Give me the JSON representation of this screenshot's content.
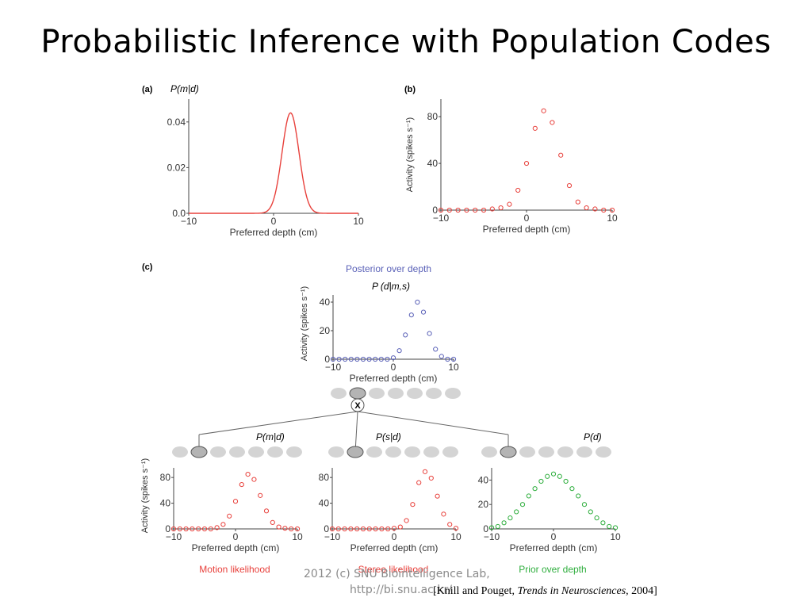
{
  "slide": {
    "title": "Probabilistic Inference with Population Codes",
    "footer_line1": "2012 (c) SNU Biointelligence Lab,",
    "footer_line2": "http://bi.snu.ac.kr/",
    "citation_prefix": "[Knill and Pouget, ",
    "citation_journal": "Trends in Neurosciences",
    "citation_suffix": ", 2004]"
  },
  "colors": {
    "red": "#e8413c",
    "blue": "#5b62b8",
    "green": "#2fae3e",
    "neuron_fill": "#d4d4d4",
    "neuron_active_fill": "#b4b4b4"
  },
  "figure": {
    "panel_a_label": "(a)",
    "panel_b_label": "(b)",
    "panel_c_label": "(c)",
    "posterior_caption": "Posterior over depth",
    "posterior_formula": "P (d|m,s)",
    "multiply_symbol": "X",
    "pm_label": "P(m|d)",
    "ps_label": "P(s|d)",
    "pd_label": "P(d)",
    "motion_caption": "Motion likelihood",
    "stereo_caption": "Stereo likelihood",
    "prior_caption": "Prior over depth"
  },
  "chart_data": [
    {
      "id": "a",
      "type": "line",
      "title": "P(m|d)",
      "xlabel": "Preferred depth (cm)",
      "ylabel": "",
      "xlim": [
        -10,
        10
      ],
      "ylim": [
        0,
        0.05
      ],
      "xticks": [
        "-10",
        "0",
        "10"
      ],
      "yticks": [
        "0.0",
        "0.02",
        "0.04"
      ],
      "series": [
        {
          "color": "red",
          "gaussian": {
            "mean": 2,
            "sd": 1,
            "peak": 0.044
          }
        }
      ]
    },
    {
      "id": "b",
      "type": "scatter",
      "title": "",
      "xlabel": "Preferred depth (cm)",
      "ylabel": "Activity (spikes s⁻¹)",
      "xlim": [
        -10,
        10
      ],
      "ylim": [
        0,
        95
      ],
      "xticks": [
        "-10",
        "0",
        "10"
      ],
      "yticks": [
        "0",
        "40",
        "80"
      ],
      "series": [
        {
          "color": "red",
          "x": [
            -10,
            -9,
            -8,
            -7,
            -6,
            -5,
            -4,
            -3,
            -2,
            -1,
            0,
            1,
            2,
            3,
            4,
            5,
            6,
            7,
            8,
            9,
            10
          ],
          "y": [
            0,
            0,
            0,
            0,
            0,
            0,
            1,
            2,
            5,
            17,
            40,
            70,
            85,
            75,
            47,
            21,
            7,
            2,
            1,
            0,
            0
          ]
        }
      ]
    },
    {
      "id": "c-posterior",
      "type": "scatter",
      "title": "Posterior over depth",
      "xlabel": "Preferred depth (cm)",
      "ylabel": "Activity (spikes s⁻¹)",
      "xlim": [
        -10,
        10
      ],
      "ylim": [
        0,
        45
      ],
      "xticks": [
        "-10",
        "0",
        "10"
      ],
      "yticks": [
        "0",
        "20",
        "40"
      ],
      "series": [
        {
          "color": "blue",
          "x": [
            -10,
            -9,
            -8,
            -7,
            -6,
            -5,
            -4,
            -3,
            -2,
            -1,
            0,
            1,
            2,
            3,
            4,
            5,
            6,
            7,
            8,
            9,
            10
          ],
          "y": [
            0,
            0,
            0,
            0,
            0,
            0,
            0,
            0,
            0,
            0,
            1,
            6,
            17,
            31,
            40,
            33,
            18,
            7,
            2,
            0,
            0
          ]
        }
      ]
    },
    {
      "id": "c-motion",
      "type": "scatter",
      "title": "Motion likelihood",
      "xlabel": "Preferred depth (cm)",
      "ylabel": "Activity (spikes s⁻¹)",
      "xlim": [
        -10,
        10
      ],
      "ylim": [
        0,
        95
      ],
      "xticks": [
        "-10",
        "0",
        "10"
      ],
      "yticks": [
        "0",
        "40",
        "80"
      ],
      "series": [
        {
          "color": "red",
          "x": [
            -10,
            -9,
            -8,
            -7,
            -6,
            -5,
            -4,
            -3,
            -2,
            -1,
            0,
            1,
            2,
            3,
            4,
            5,
            6,
            7,
            8,
            9,
            10
          ],
          "y": [
            0,
            0,
            0,
            0,
            0,
            0,
            0,
            2,
            7,
            20,
            43,
            69,
            85,
            77,
            52,
            28,
            10,
            3,
            1,
            0,
            0
          ]
        }
      ]
    },
    {
      "id": "c-stereo",
      "type": "scatter",
      "title": "Stereo likelihood",
      "xlabel": "Preferred depth (cm)",
      "ylabel": "",
      "xlim": [
        -10,
        10
      ],
      "ylim": [
        0,
        95
      ],
      "xticks": [
        "-10",
        "0",
        "10"
      ],
      "yticks": [
        "0",
        "40",
        "80"
      ],
      "series": [
        {
          "color": "red",
          "x": [
            -10,
            -9,
            -8,
            -7,
            -6,
            -5,
            -4,
            -3,
            -2,
            -1,
            0,
            1,
            2,
            3,
            4,
            5,
            6,
            7,
            8,
            9,
            10
          ],
          "y": [
            0,
            0,
            0,
            0,
            0,
            0,
            0,
            0,
            0,
            0,
            1,
            3,
            13,
            38,
            72,
            89,
            79,
            51,
            23,
            7,
            1
          ]
        }
      ]
    },
    {
      "id": "c-prior",
      "type": "scatter",
      "title": "Prior over depth",
      "xlabel": "Preferred depth (cm)",
      "ylabel": "",
      "xlim": [
        -10,
        10
      ],
      "ylim": [
        0,
        50
      ],
      "xticks": [
        "-10",
        "0",
        "10"
      ],
      "yticks": [
        "0",
        "20",
        "40"
      ],
      "series": [
        {
          "color": "green",
          "x": [
            -10,
            -9,
            -8,
            -7,
            -6,
            -5,
            -4,
            -3,
            -2,
            -1,
            0,
            1,
            2,
            3,
            4,
            5,
            6,
            7,
            8,
            9,
            10
          ],
          "y": [
            1,
            2,
            5,
            9,
            14,
            20,
            27,
            33,
            39,
            43,
            45,
            43,
            39,
            33,
            27,
            20,
            14,
            9,
            5,
            2,
            1
          ]
        }
      ]
    }
  ]
}
